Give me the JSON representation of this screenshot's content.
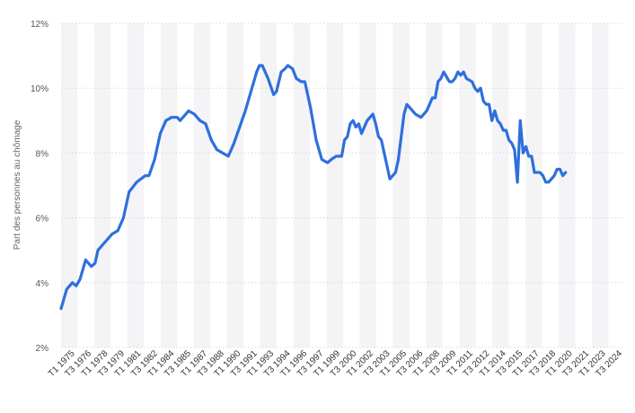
{
  "chart_data": {
    "type": "line",
    "ylabel": "Part des personnes au chômage",
    "y_unit": "%",
    "ylim": [
      2,
      12
    ],
    "y_ticks": [
      "2%",
      "4%",
      "6%",
      "8%",
      "10%",
      "12%"
    ],
    "grid": true,
    "legend": "none",
    "x_tick_labels": [
      "T1 1975",
      "T3 1976",
      "T1 1978",
      "T3 1979",
      "T1 1981",
      "T3 1982",
      "T1 1984",
      "T3 1985",
      "T1 1987",
      "T3 1988",
      "T1 1990",
      "T3 1991",
      "T1 1993",
      "T3 1994",
      "T1 1996",
      "T3 1997",
      "T1 1999",
      "T3 2000",
      "T1 2002",
      "T3 2003",
      "T1 2005",
      "T3 2006",
      "T1 2008",
      "T3 2009",
      "T1 2011",
      "T3 2012",
      "T1 2014",
      "T3 2015",
      "T1 2017",
      "T3 2018",
      "T1 2020",
      "T3 2021",
      "T1 2023",
      "T3 2024"
    ],
    "series": [
      {
        "color": "#2f6fdc",
        "points": [
          [
            "1975-01",
            3.2
          ],
          [
            "1975-07",
            3.8
          ],
          [
            "1976-01",
            4.0
          ],
          [
            "1976-05",
            3.9
          ],
          [
            "1976-09",
            4.1
          ],
          [
            "1977-03",
            4.7
          ],
          [
            "1977-09",
            4.5
          ],
          [
            "1978-01",
            4.6
          ],
          [
            "1978-04",
            5.0
          ],
          [
            "1979-01",
            5.3
          ],
          [
            "1979-07",
            5.5
          ],
          [
            "1980-01",
            5.6
          ],
          [
            "1980-07",
            6.0
          ],
          [
            "1981-01",
            6.8
          ],
          [
            "1981-09",
            7.1
          ],
          [
            "1982-06",
            7.3
          ],
          [
            "1982-10",
            7.3
          ],
          [
            "1983-04",
            7.8
          ],
          [
            "1983-10",
            8.6
          ],
          [
            "1984-04",
            9.0
          ],
          [
            "1984-10",
            9.1
          ],
          [
            "1985-04",
            9.1
          ],
          [
            "1985-07",
            9.0
          ],
          [
            "1985-10",
            9.1
          ],
          [
            "1986-04",
            9.3
          ],
          [
            "1986-10",
            9.2
          ],
          [
            "1987-04",
            9.0
          ],
          [
            "1987-10",
            8.9
          ],
          [
            "1988-04",
            8.4
          ],
          [
            "1988-10",
            8.1
          ],
          [
            "1989-04",
            8.0
          ],
          [
            "1989-10",
            7.9
          ],
          [
            "1990-04",
            8.3
          ],
          [
            "1990-10",
            8.8
          ],
          [
            "1991-04",
            9.3
          ],
          [
            "1991-10",
            9.9
          ],
          [
            "1992-04",
            10.5
          ],
          [
            "1992-07",
            10.7
          ],
          [
            "1992-10",
            10.7
          ],
          [
            "1993-04",
            10.3
          ],
          [
            "1993-10",
            9.8
          ],
          [
            "1994-01",
            9.9
          ],
          [
            "1994-06",
            10.5
          ],
          [
            "1994-10",
            10.6
          ],
          [
            "1995-01",
            10.7
          ],
          [
            "1995-06",
            10.6
          ],
          [
            "1995-10",
            10.3
          ],
          [
            "1996-03",
            10.2
          ],
          [
            "1996-07",
            10.2
          ],
          [
            "1997-01",
            9.4
          ],
          [
            "1997-07",
            8.4
          ],
          [
            "1998-01",
            7.8
          ],
          [
            "1998-07",
            7.7
          ],
          [
            "1998-11",
            7.8
          ],
          [
            "1999-04",
            7.9
          ],
          [
            "1999-10",
            7.9
          ],
          [
            "2000-01",
            8.4
          ],
          [
            "2000-04",
            8.5
          ],
          [
            "2000-07",
            8.9
          ],
          [
            "2000-10",
            9.0
          ],
          [
            "2001-01",
            8.8
          ],
          [
            "2001-04",
            8.9
          ],
          [
            "2001-07",
            8.6
          ],
          [
            "2001-10",
            8.8
          ],
          [
            "2002-01",
            9.0
          ],
          [
            "2002-07",
            9.2
          ],
          [
            "2002-10",
            8.9
          ],
          [
            "2003-01",
            8.5
          ],
          [
            "2003-04",
            8.4
          ],
          [
            "2003-07",
            8.0
          ],
          [
            "2003-10",
            7.6
          ],
          [
            "2004-01",
            7.2
          ],
          [
            "2004-07",
            7.4
          ],
          [
            "2004-10",
            7.8
          ],
          [
            "2005-01",
            8.5
          ],
          [
            "2005-04",
            9.2
          ],
          [
            "2005-07",
            9.5
          ],
          [
            "2005-10",
            9.4
          ],
          [
            "2006-01",
            9.3
          ],
          [
            "2006-04",
            9.2
          ],
          [
            "2006-10",
            9.1
          ],
          [
            "2007-04",
            9.3
          ],
          [
            "2007-10",
            9.7
          ],
          [
            "2008-01",
            9.7
          ],
          [
            "2008-04",
            10.2
          ],
          [
            "2008-07",
            10.3
          ],
          [
            "2008-10",
            10.5
          ],
          [
            "2009-04",
            10.2
          ],
          [
            "2009-07",
            10.2
          ],
          [
            "2009-10",
            10.3
          ],
          [
            "2010-01",
            10.5
          ],
          [
            "2010-04",
            10.4
          ],
          [
            "2010-07",
            10.5
          ],
          [
            "2010-10",
            10.3
          ],
          [
            "2011-04",
            10.2
          ],
          [
            "2011-07",
            10.0
          ],
          [
            "2011-10",
            9.9
          ],
          [
            "2012-01",
            10.0
          ],
          [
            "2012-04",
            9.6
          ],
          [
            "2012-07",
            9.5
          ],
          [
            "2012-10",
            9.5
          ],
          [
            "2013-01",
            9.0
          ],
          [
            "2013-04",
            9.3
          ],
          [
            "2013-07",
            9.0
          ],
          [
            "2013-10",
            8.9
          ],
          [
            "2014-01",
            8.7
          ],
          [
            "2014-04",
            8.7
          ],
          [
            "2014-07",
            8.4
          ],
          [
            "2014-10",
            8.3
          ],
          [
            "2015-01",
            8.1
          ],
          [
            "2015-04",
            7.1
          ],
          [
            "2015-07",
            9.0
          ],
          [
            "2015-10",
            8.0
          ],
          [
            "2016-01",
            8.2
          ],
          [
            "2016-04",
            7.9
          ],
          [
            "2016-07",
            7.9
          ],
          [
            "2016-10",
            7.4
          ],
          [
            "2017-04",
            7.4
          ],
          [
            "2017-07",
            7.3
          ],
          [
            "2017-10",
            7.1
          ],
          [
            "2018-01",
            7.1
          ],
          [
            "2018-07",
            7.3
          ],
          [
            "2018-10",
            7.5
          ],
          [
            "2019-01",
            7.5
          ],
          [
            "2019-04",
            7.3
          ],
          [
            "2019-07",
            7.4
          ]
        ]
      }
    ]
  }
}
